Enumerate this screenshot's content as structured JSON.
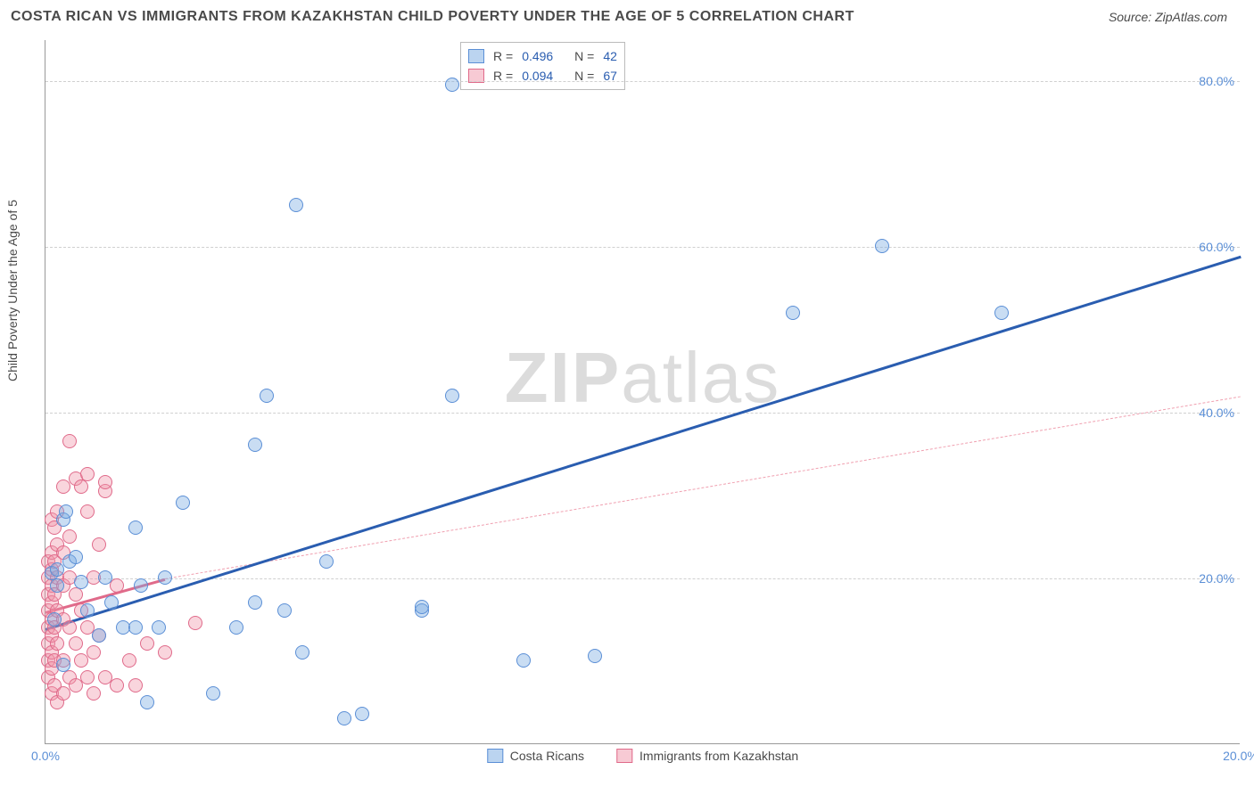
{
  "title": "COSTA RICAN VS IMMIGRANTS FROM KAZAKHSTAN CHILD POVERTY UNDER THE AGE OF 5 CORRELATION CHART",
  "source": "Source: ZipAtlas.com",
  "watermark_a": "ZIP",
  "watermark_b": "atlas",
  "y_axis_label": "Child Poverty Under the Age of 5",
  "chart": {
    "type": "scatter",
    "xlim": [
      0,
      20
    ],
    "ylim": [
      0,
      85
    ],
    "x_ticks": [
      {
        "v": 0,
        "label": "0.0%"
      },
      {
        "v": 20,
        "label": "20.0%"
      }
    ],
    "y_ticks": [
      {
        "v": 20,
        "label": "20.0%"
      },
      {
        "v": 40,
        "label": "40.0%"
      },
      {
        "v": 60,
        "label": "60.0%"
      },
      {
        "v": 80,
        "label": "80.0%"
      }
    ],
    "grid_color": "#d0d0d0",
    "background_color": "#ffffff",
    "series": [
      {
        "name": "Costa Ricans",
        "color_fill": "rgba(120,170,225,0.4)",
        "color_stroke": "#5b8fd6",
        "trend_color": "#2a5db0",
        "R": "0.496",
        "N": "42",
        "trend_solid": {
          "x1": 0,
          "y1": 14,
          "x2": 2,
          "y2": 20
        },
        "trend_dash": {
          "x1": 2,
          "y1": 20,
          "x2": 20,
          "y2": 59
        },
        "points": [
          [
            0.1,
            20.5
          ],
          [
            0.15,
            15
          ],
          [
            0.2,
            19
          ],
          [
            0.2,
            21
          ],
          [
            0.3,
            9.5
          ],
          [
            0.3,
            27
          ],
          [
            0.35,
            28
          ],
          [
            0.4,
            22
          ],
          [
            0.5,
            22.5
          ],
          [
            0.6,
            19.5
          ],
          [
            0.7,
            16
          ],
          [
            6.8,
            79.5
          ],
          [
            0.9,
            13
          ],
          [
            1.0,
            20
          ],
          [
            1.1,
            17
          ],
          [
            1.3,
            14
          ],
          [
            1.5,
            14
          ],
          [
            1.5,
            26
          ],
          [
            1.6,
            19
          ],
          [
            1.7,
            5
          ],
          [
            1.9,
            14
          ],
          [
            2.0,
            20
          ],
          [
            2.3,
            29
          ],
          [
            2.8,
            6
          ],
          [
            3.2,
            14
          ],
          [
            3.5,
            17
          ],
          [
            3.5,
            36
          ],
          [
            3.7,
            42
          ],
          [
            4.0,
            16
          ],
          [
            4.2,
            65
          ],
          [
            4.3,
            11
          ],
          [
            4.7,
            22
          ],
          [
            5.0,
            3
          ],
          [
            5.3,
            3.5
          ],
          [
            6.3,
            16
          ],
          [
            6.3,
            16.5
          ],
          [
            6.8,
            42
          ],
          [
            8.0,
            10
          ],
          [
            9.2,
            10.5
          ],
          [
            12.5,
            52
          ],
          [
            14.0,
            60
          ],
          [
            16.0,
            52
          ]
        ]
      },
      {
        "name": "Immigrants from Kazakhstan",
        "color_fill": "rgba(240,150,170,0.4)",
        "color_stroke": "#e06a8a",
        "trend_color": "#e06a8a",
        "R": "0.094",
        "N": "67",
        "trend_solid": {
          "x1": 0,
          "y1": 16,
          "x2": 2,
          "y2": 20
        },
        "trend_dash": {
          "x1": 2,
          "y1": 20,
          "x2": 20,
          "y2": 42
        },
        "points": [
          [
            0.05,
            8
          ],
          [
            0.05,
            10
          ],
          [
            0.05,
            12
          ],
          [
            0.05,
            14
          ],
          [
            0.05,
            16
          ],
          [
            0.05,
            18
          ],
          [
            0.05,
            20
          ],
          [
            0.05,
            22
          ],
          [
            0.1,
            6
          ],
          [
            0.1,
            9
          ],
          [
            0.1,
            11
          ],
          [
            0.1,
            13
          ],
          [
            0.1,
            15
          ],
          [
            0.1,
            17
          ],
          [
            0.1,
            19
          ],
          [
            0.1,
            21
          ],
          [
            0.1,
            23
          ],
          [
            0.1,
            27
          ],
          [
            0.15,
            7
          ],
          [
            0.15,
            10
          ],
          [
            0.15,
            14
          ],
          [
            0.15,
            18
          ],
          [
            0.15,
            22
          ],
          [
            0.15,
            26
          ],
          [
            0.2,
            5
          ],
          [
            0.2,
            12
          ],
          [
            0.2,
            16
          ],
          [
            0.2,
            20
          ],
          [
            0.2,
            24
          ],
          [
            0.2,
            28
          ],
          [
            0.3,
            6
          ],
          [
            0.3,
            10
          ],
          [
            0.3,
            15
          ],
          [
            0.3,
            19
          ],
          [
            0.3,
            23
          ],
          [
            0.3,
            31
          ],
          [
            0.4,
            8
          ],
          [
            0.4,
            14
          ],
          [
            0.4,
            20
          ],
          [
            0.4,
            25
          ],
          [
            0.4,
            36.5
          ],
          [
            0.5,
            7
          ],
          [
            0.5,
            12
          ],
          [
            0.5,
            18
          ],
          [
            0.5,
            32
          ],
          [
            0.6,
            10
          ],
          [
            0.6,
            16
          ],
          [
            0.6,
            31
          ],
          [
            0.7,
            8
          ],
          [
            0.7,
            14
          ],
          [
            0.7,
            28
          ],
          [
            0.7,
            32.5
          ],
          [
            0.8,
            6
          ],
          [
            0.8,
            11
          ],
          [
            0.8,
            20
          ],
          [
            0.9,
            13
          ],
          [
            0.9,
            24
          ],
          [
            1.0,
            8
          ],
          [
            1.0,
            30.5
          ],
          [
            1.0,
            31.5
          ],
          [
            1.2,
            7
          ],
          [
            1.2,
            19
          ],
          [
            1.4,
            10
          ],
          [
            1.5,
            7
          ],
          [
            1.7,
            12
          ],
          [
            2.0,
            11
          ],
          [
            2.5,
            14.5
          ]
        ]
      }
    ]
  },
  "legend_top_labels": {
    "R": "R =",
    "N": "N ="
  },
  "legend_bottom": [
    {
      "swatch": "blue",
      "label": "Costa Ricans"
    },
    {
      "swatch": "pink",
      "label": "Immigrants from Kazakhstan"
    }
  ]
}
